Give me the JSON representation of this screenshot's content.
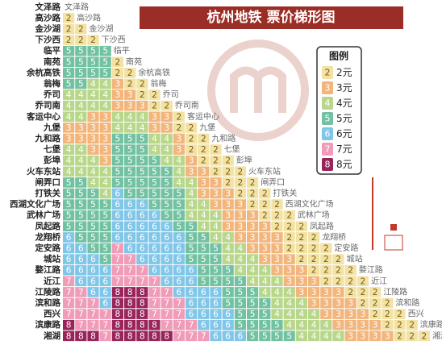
{
  "header": {
    "title": "杭州地铁  票价梯形图"
  },
  "stations": [
    "文泽路",
    "高沙路",
    "金沙湖",
    "下沙西",
    "临平",
    "南苑",
    "余杭高铁",
    "翁梅",
    "乔司",
    "乔司南",
    "客运中心",
    "九堡",
    "九和路",
    "七堡",
    "彭埠",
    "火车东站",
    "闸弄口",
    "打铁关",
    "西湖文化广场",
    "武林广场",
    "凤起路",
    "龙翔桥",
    "定安路",
    "城站",
    "婺江路",
    "近江",
    "江陵路",
    "滨和路",
    "西兴",
    "滨康路",
    "湘湖"
  ],
  "fares": [
    [],
    [
      2
    ],
    [
      2,
      2
    ],
    [
      2,
      2,
      2
    ],
    [
      5,
      5,
      5,
      5
    ],
    [
      5,
      5,
      5,
      5,
      2
    ],
    [
      5,
      5,
      5,
      5,
      2,
      2
    ],
    [
      5,
      5,
      4,
      4,
      3,
      2,
      2
    ],
    [
      4,
      4,
      4,
      4,
      3,
      3,
      2,
      2
    ],
    [
      4,
      4,
      4,
      4,
      3,
      3,
      3,
      2,
      2
    ],
    [
      4,
      4,
      3,
      3,
      4,
      4,
      4,
      3,
      3,
      2
    ],
    [
      3,
      3,
      3,
      3,
      4,
      4,
      4,
      3,
      3,
      2,
      2
    ],
    [
      3,
      3,
      3,
      3,
      5,
      5,
      5,
      4,
      4,
      3,
      2,
      2
    ],
    [
      4,
      4,
      3,
      3,
      5,
      5,
      5,
      4,
      4,
      3,
      2,
      2,
      2
    ],
    [
      4,
      4,
      4,
      3,
      5,
      5,
      5,
      5,
      4,
      4,
      3,
      2,
      2,
      2
    ],
    [
      4,
      4,
      4,
      4,
      5,
      5,
      5,
      5,
      5,
      4,
      3,
      3,
      2,
      2,
      2
    ],
    [
      5,
      5,
      4,
      4,
      5,
      5,
      5,
      5,
      5,
      4,
      4,
      3,
      3,
      2,
      2,
      2
    ],
    [
      5,
      5,
      5,
      4,
      6,
      5,
      5,
      5,
      5,
      5,
      4,
      3,
      3,
      3,
      2,
      2,
      2
    ],
    [
      5,
      5,
      5,
      5,
      6,
      6,
      6,
      5,
      5,
      5,
      4,
      4,
      3,
      3,
      3,
      2,
      2,
      2
    ],
    [
      5,
      5,
      5,
      5,
      6,
      6,
      6,
      6,
      5,
      5,
      4,
      4,
      4,
      3,
      3,
      3,
      2,
      2,
      2
    ],
    [
      5,
      5,
      5,
      5,
      6,
      6,
      6,
      6,
      6,
      5,
      5,
      4,
      4,
      3,
      3,
      3,
      3,
      2,
      2,
      2
    ],
    [
      6,
      5,
      5,
      5,
      6,
      6,
      6,
      6,
      6,
      6,
      5,
      5,
      4,
      4,
      3,
      3,
      3,
      3,
      2,
      2,
      2
    ],
    [
      6,
      6,
      5,
      5,
      7,
      6,
      6,
      6,
      6,
      6,
      5,
      5,
      5,
      4,
      4,
      3,
      3,
      3,
      2,
      2,
      2,
      2
    ],
    [
      6,
      6,
      6,
      5,
      7,
      7,
      6,
      6,
      6,
      6,
      5,
      5,
      5,
      4,
      4,
      4,
      3,
      3,
      3,
      2,
      2,
      2,
      2
    ],
    [
      6,
      6,
      6,
      6,
      7,
      7,
      7,
      6,
      6,
      6,
      6,
      5,
      5,
      5,
      4,
      4,
      4,
      3,
      3,
      3,
      2,
      2,
      2,
      2
    ],
    [
      7,
      6,
      6,
      6,
      7,
      7,
      7,
      7,
      6,
      6,
      6,
      5,
      5,
      5,
      5,
      4,
      4,
      4,
      3,
      3,
      3,
      2,
      2,
      2,
      2
    ],
    [
      7,
      7,
      6,
      6,
      8,
      8,
      8,
      7,
      7,
      6,
      6,
      6,
      6,
      5,
      5,
      5,
      4,
      4,
      4,
      3,
      3,
      3,
      3,
      2,
      2,
      2
    ],
    [
      7,
      7,
      7,
      6,
      8,
      8,
      8,
      7,
      7,
      7,
      6,
      6,
      6,
      5,
      5,
      5,
      5,
      4,
      4,
      4,
      3,
      3,
      3,
      3,
      2,
      2,
      2
    ],
    [
      7,
      7,
      7,
      7,
      8,
      8,
      8,
      7,
      7,
      7,
      6,
      6,
      6,
      6,
      5,
      5,
      5,
      4,
      4,
      4,
      4,
      3,
      3,
      3,
      3,
      2,
      2,
      2
    ],
    [
      8,
      7,
      7,
      7,
      8,
      8,
      8,
      8,
      7,
      7,
      7,
      6,
      6,
      6,
      5,
      5,
      5,
      5,
      4,
      4,
      4,
      4,
      3,
      3,
      3,
      3,
      2,
      2,
      2
    ],
    [
      8,
      8,
      8,
      7,
      8,
      8,
      8,
      8,
      8,
      7,
      7,
      7,
      6,
      6,
      6,
      5,
      5,
      5,
      5,
      4,
      4,
      4,
      4,
      3,
      3,
      3,
      3,
      2,
      2,
      2
    ]
  ],
  "legend": {
    "title": "图例",
    "items": [
      {
        "value": 2,
        "label": "2元",
        "color": "#f2e2a4"
      },
      {
        "value": 3,
        "label": "3元",
        "color": "#f2b67c"
      },
      {
        "value": 4,
        "label": "4元",
        "color": "#b8d78a"
      },
      {
        "value": 5,
        "label": "5元",
        "color": "#72c2a2"
      },
      {
        "value": 6,
        "label": "6元",
        "color": "#80c6e8"
      },
      {
        "value": 7,
        "label": "7元",
        "color": "#f09cb9"
      },
      {
        "value": 8,
        "label": "8元",
        "color": "#98245a"
      }
    ]
  }
}
